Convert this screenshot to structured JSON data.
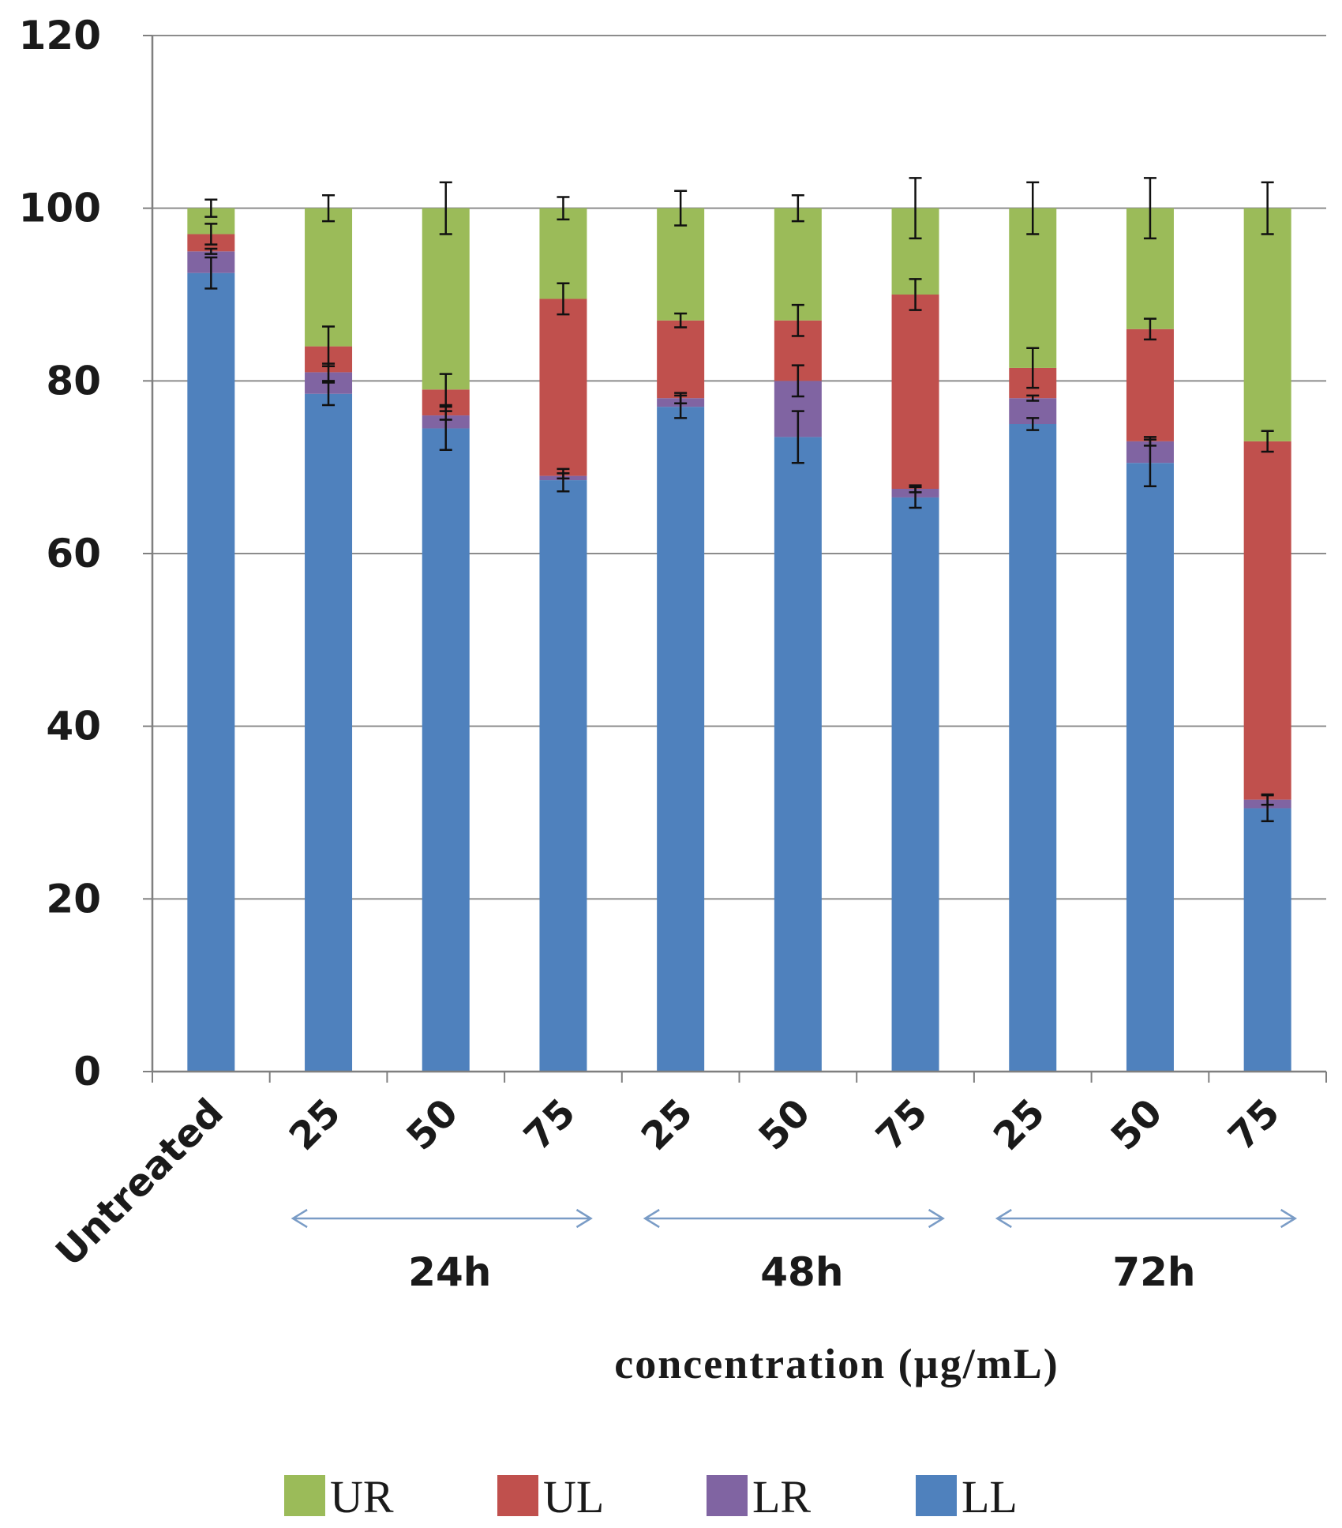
{
  "chart_data": {
    "type": "bar",
    "stacked": true,
    "title": "",
    "xlabel": "concentration (µg/mL)",
    "ylabel": "",
    "ylim": [
      0,
      120
    ],
    "yticks": [
      0,
      20,
      40,
      60,
      80,
      100,
      120
    ],
    "grid": true,
    "legend_position": "bottom",
    "categories": [
      "Untreated",
      "25",
      "50",
      "75",
      "25",
      "50",
      "75",
      "25",
      "50",
      "75"
    ],
    "groups": [
      {
        "label": "24h",
        "from": 1,
        "to": 3
      },
      {
        "label": "48h",
        "from": 4,
        "to": 6
      },
      {
        "label": "72h",
        "from": 7,
        "to": 9
      }
    ],
    "series": [
      {
        "name": "LL",
        "color": "#4f81bd",
        "values": [
          92.5,
          78.5,
          74.5,
          68.5,
          77,
          73.5,
          66.5,
          75,
          70.5,
          30.5
        ],
        "errors": [
          1.8,
          1.3,
          2.5,
          1.3,
          1.3,
          3.0,
          1.2,
          0.7,
          2.7,
          1.5
        ]
      },
      {
        "name": "LR",
        "color": "#8064a2",
        "values": [
          2.5,
          2.5,
          1.5,
          0.5,
          1,
          6.5,
          1,
          3,
          2.5,
          1
        ],
        "errors": [
          0.3,
          1.0,
          0.5,
          0.3,
          0.6,
          1.8,
          0.4,
          0.3,
          0.5,
          0.6
        ]
      },
      {
        "name": "UL",
        "color": "#c0504d",
        "values": [
          2,
          3,
          3,
          20.5,
          9,
          7,
          22.5,
          3.5,
          13,
          41.5
        ],
        "errors": [
          1.2,
          2.3,
          1.8,
          1.8,
          0.8,
          1.8,
          1.8,
          2.3,
          1.2,
          1.2
        ]
      },
      {
        "name": "UR",
        "color": "#9bbb59",
        "values": [
          3,
          16,
          21,
          10.5,
          13,
          13,
          10,
          18.5,
          14,
          27
        ],
        "errors": [
          1.0,
          1.5,
          3.0,
          1.3,
          2.0,
          1.5,
          3.5,
          3.0,
          3.5,
          3.0
        ]
      }
    ],
    "legend_order": [
      "UR",
      "UL",
      "LR",
      "LL"
    ]
  }
}
